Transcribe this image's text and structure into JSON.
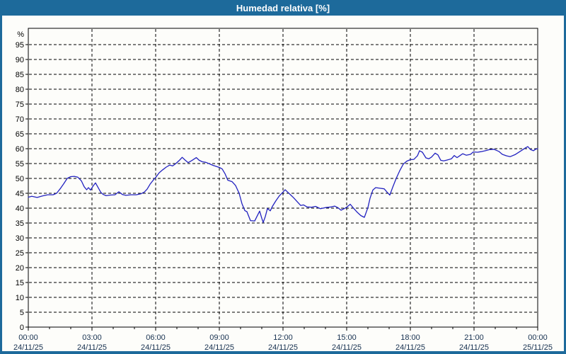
{
  "window": {
    "title": "Humedad relativa [%]"
  },
  "colors": {
    "titlebar_bg": "#1d6a9b",
    "frame": "#1d6a9b",
    "title_text": "#ffffff",
    "plot_bg": "#fdfdfa",
    "axis": "#000000",
    "grid": "#000000",
    "line": "#2222c0",
    "y_label": "#000000",
    "x_label": "#16304f"
  },
  "chart_data": {
    "type": "line",
    "title": "Humedad relativa [%]",
    "ylabel": "%",
    "xlabel": "",
    "ylim": [
      0,
      100.5
    ],
    "xlim_minutes": [
      0,
      1440
    ],
    "grid": "dashed black, horizontal every 5%, vertical every 3h",
    "legend_position": "none",
    "y_unit_label": "%",
    "y_ticks": [
      0,
      5,
      10,
      15,
      20,
      25,
      30,
      35,
      40,
      45,
      50,
      55,
      60,
      65,
      70,
      75,
      80,
      85,
      90,
      95
    ],
    "x_major_tick_hours": 3,
    "x_minor_tick_hours": 1,
    "x_ticks": [
      {
        "time": "00:00",
        "date": "24/11/25"
      },
      {
        "time": "03:00",
        "date": "24/11/25"
      },
      {
        "time": "06:00",
        "date": "24/11/25"
      },
      {
        "time": "09:00",
        "date": "24/11/25"
      },
      {
        "time": "12:00",
        "date": "24/11/25"
      },
      {
        "time": "15:00",
        "date": "24/11/25"
      },
      {
        "time": "18:00",
        "date": "24/11/25"
      },
      {
        "time": "21:00",
        "date": "24/11/25"
      },
      {
        "time": "00:00",
        "date": "25/11/25"
      }
    ],
    "series": [
      {
        "name": "Humedad relativa [%]",
        "color": "#2222c0",
        "points": [
          [
            0,
            43.7
          ],
          [
            10,
            44.0
          ],
          [
            25,
            43.6
          ],
          [
            40,
            44.1
          ],
          [
            55,
            44.5
          ],
          [
            70,
            44.5
          ],
          [
            80,
            45.0
          ],
          [
            90,
            46.5
          ],
          [
            100,
            48.2
          ],
          [
            110,
            50.0
          ],
          [
            120,
            50.6
          ],
          [
            130,
            50.7
          ],
          [
            140,
            50.4
          ],
          [
            150,
            49.2
          ],
          [
            158,
            47.2
          ],
          [
            165,
            46.2
          ],
          [
            170,
            46.9
          ],
          [
            176,
            46.1
          ],
          [
            184,
            47.6
          ],
          [
            190,
            48.5
          ],
          [
            198,
            46.8
          ],
          [
            205,
            45.3
          ],
          [
            212,
            44.6
          ],
          [
            220,
            44.2
          ],
          [
            232,
            44.4
          ],
          [
            245,
            44.5
          ],
          [
            256,
            45.5
          ],
          [
            266,
            44.6
          ],
          [
            276,
            44.3
          ],
          [
            290,
            44.5
          ],
          [
            305,
            44.5
          ],
          [
            318,
            44.8
          ],
          [
            328,
            45.4
          ],
          [
            336,
            46.4
          ],
          [
            345,
            48.2
          ],
          [
            355,
            49.7
          ],
          [
            360,
            50.3
          ],
          [
            370,
            51.9
          ],
          [
            380,
            52.9
          ],
          [
            390,
            53.8
          ],
          [
            400,
            54.5
          ],
          [
            408,
            54.2
          ],
          [
            418,
            55.1
          ],
          [
            428,
            56.2
          ],
          [
            435,
            57.1
          ],
          [
            443,
            56.2
          ],
          [
            452,
            55.3
          ],
          [
            462,
            56.0
          ],
          [
            475,
            57.0
          ],
          [
            483,
            56.1
          ],
          [
            492,
            55.6
          ],
          [
            502,
            55.4
          ],
          [
            512,
            54.9
          ],
          [
            522,
            54.4
          ],
          [
            540,
            53.7
          ],
          [
            548,
            53.2
          ],
          [
            556,
            51.6
          ],
          [
            564,
            49.4
          ],
          [
            576,
            48.9
          ],
          [
            586,
            47.6
          ],
          [
            596,
            45.0
          ],
          [
            604,
            41.5
          ],
          [
            612,
            39.2
          ],
          [
            618,
            38.8
          ],
          [
            628,
            35.8
          ],
          [
            640,
            35.7
          ],
          [
            648,
            37.6
          ],
          [
            654,
            39.0
          ],
          [
            660,
            36.6
          ],
          [
            664,
            35.2
          ],
          [
            670,
            37.2
          ],
          [
            676,
            39.9
          ],
          [
            684,
            39.1
          ],
          [
            690,
            40.6
          ],
          [
            700,
            42.5
          ],
          [
            710,
            44.2
          ],
          [
            720,
            45.4
          ],
          [
            726,
            46.2
          ],
          [
            734,
            45.3
          ],
          [
            742,
            44.4
          ],
          [
            750,
            43.5
          ],
          [
            760,
            42.2
          ],
          [
            770,
            40.9
          ],
          [
            778,
            41.1
          ],
          [
            788,
            40.4
          ],
          [
            800,
            40.3
          ],
          [
            812,
            40.6
          ],
          [
            826,
            39.8
          ],
          [
            840,
            40.2
          ],
          [
            856,
            40.4
          ],
          [
            866,
            40.7
          ],
          [
            876,
            40.1
          ],
          [
            884,
            39.3
          ],
          [
            894,
            39.9
          ],
          [
            900,
            40.3
          ],
          [
            910,
            41.3
          ],
          [
            920,
            39.9
          ],
          [
            930,
            38.6
          ],
          [
            940,
            37.5
          ],
          [
            950,
            36.9
          ],
          [
            960,
            40.2
          ],
          [
            966,
            43.3
          ],
          [
            974,
            46.1
          ],
          [
            982,
            46.9
          ],
          [
            994,
            46.7
          ],
          [
            1006,
            46.5
          ],
          [
            1014,
            45.4
          ],
          [
            1022,
            44.4
          ],
          [
            1030,
            47.0
          ],
          [
            1040,
            50.0
          ],
          [
            1050,
            52.6
          ],
          [
            1060,
            54.8
          ],
          [
            1070,
            55.8
          ],
          [
            1080,
            56.3
          ],
          [
            1090,
            56.4
          ],
          [
            1100,
            57.6
          ],
          [
            1106,
            59.3
          ],
          [
            1114,
            58.8
          ],
          [
            1124,
            56.9
          ],
          [
            1132,
            56.6
          ],
          [
            1140,
            57.2
          ],
          [
            1150,
            58.5
          ],
          [
            1158,
            57.9
          ],
          [
            1166,
            56.1
          ],
          [
            1174,
            55.9
          ],
          [
            1184,
            56.2
          ],
          [
            1196,
            56.6
          ],
          [
            1204,
            57.7
          ],
          [
            1212,
            57.0
          ],
          [
            1222,
            57.8
          ],
          [
            1228,
            58.3
          ],
          [
            1238,
            57.8
          ],
          [
            1250,
            58.1
          ],
          [
            1258,
            58.9
          ],
          [
            1270,
            58.8
          ],
          [
            1280,
            59.0
          ],
          [
            1292,
            59.3
          ],
          [
            1304,
            59.7
          ],
          [
            1316,
            59.8
          ],
          [
            1330,
            59.1
          ],
          [
            1340,
            58.1
          ],
          [
            1352,
            57.6
          ],
          [
            1362,
            57.3
          ],
          [
            1376,
            58.0
          ],
          [
            1388,
            58.9
          ],
          [
            1398,
            59.7
          ],
          [
            1406,
            60.3
          ],
          [
            1412,
            60.7
          ],
          [
            1420,
            59.7
          ],
          [
            1428,
            59.3
          ],
          [
            1434,
            59.8
          ],
          [
            1440,
            60.0
          ]
        ]
      }
    ]
  }
}
